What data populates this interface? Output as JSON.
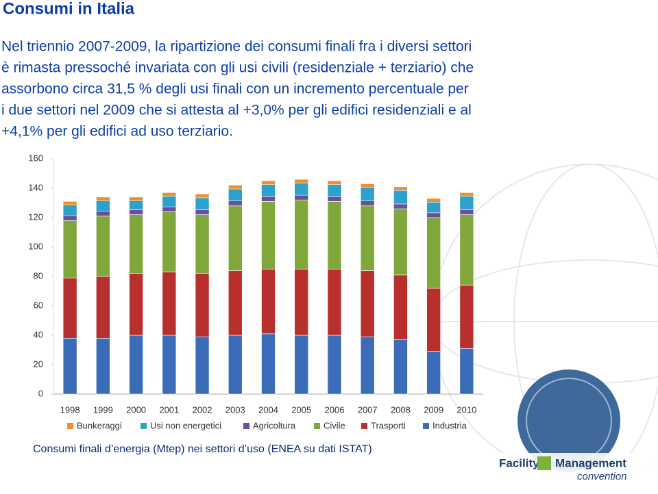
{
  "title": "Consumi in Italia",
  "paragraph": [
    "Nel triennio 2007-2009, la ripartizione dei consumi finali fra i diversi settori",
    "è rimasta pressoché invariata con gli usi civili (residenziale + terziario) che",
    "assorbono circa 31,5 % degli usi finali con un incremento percentuale per",
    "i due settori nel 2009 che si attesta al +3,0% per gli edifici residenziali e al",
    "+4,1% per gli edifici ad uso terziario."
  ],
  "caption": "Consumi finali d’energia (Mtep) nei settori d’uso (ENEA su dati ISTAT)",
  "logo": {
    "name": "Facility",
    "name2": "Management",
    "tagline": "convention"
  },
  "chart_data": {
    "type": "stacked_bar",
    "categories": [
      "1998",
      "1999",
      "2000",
      "2001",
      "2002",
      "2003",
      "2004",
      "2005",
      "2006",
      "2007",
      "2008",
      "2009",
      "2010"
    ],
    "ylim": [
      0,
      160
    ],
    "yticks": [
      0,
      20,
      40,
      60,
      80,
      100,
      120,
      140,
      160
    ],
    "grid": false,
    "series": [
      {
        "name": "Industria",
        "color": "#3a6cb8",
        "values": [
          38,
          38,
          40,
          40,
          39,
          40,
          41,
          40,
          40,
          39,
          37,
          29,
          31
        ]
      },
      {
        "name": "Trasporti",
        "color": "#b7302e",
        "values": [
          41,
          42,
          42,
          43,
          43,
          44,
          44,
          45,
          45,
          45,
          44,
          43,
          43
        ]
      },
      {
        "name": "Civile",
        "color": "#80a73b",
        "values": [
          39,
          41,
          40,
          41,
          40,
          44,
          46,
          47,
          46,
          44,
          45,
          48,
          48
        ]
      },
      {
        "name": "Agricoltura",
        "color": "#6b4f9e",
        "values": [
          3.3,
          3.3,
          3.3,
          3.3,
          3.3,
          3.3,
          3.3,
          3.3,
          3.3,
          3.3,
          3.3,
          3.3,
          3.3
        ]
      },
      {
        "name": "Usi non energetici",
        "color": "#2ba1cb",
        "values": [
          7.2,
          7.2,
          6.2,
          7.2,
          8.2,
          8.2,
          8.2,
          8.2,
          8.2,
          9.2,
          9.2,
          7.2,
          9.2
        ]
      },
      {
        "name": "Bunkeraggi",
        "color": "#ef8f2c",
        "values": [
          2.5,
          2.5,
          2.5,
          2.5,
          2.5,
          2.5,
          2.5,
          2.5,
          2.5,
          2.5,
          2.5,
          2.5,
          2.5
        ]
      }
    ]
  }
}
